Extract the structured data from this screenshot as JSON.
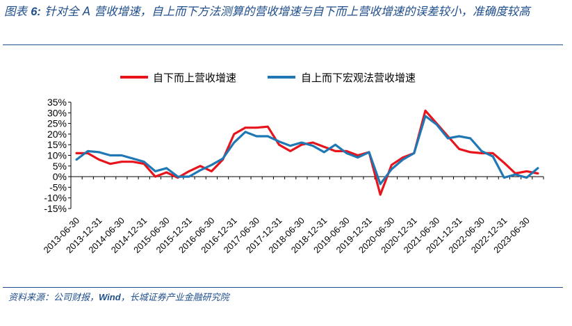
{
  "figure": {
    "title_prefix": "图表",
    "title_number": "6:",
    "title_text": "针对全 A 营收增速，自上而下方法测算的营收增速与自下而上营收增速的误差较小，准确度较高",
    "source_prefix": "资料来源：公司财报，",
    "source_wind": "Wind",
    "source_suffix": "，长城证券产业金融研究院"
  },
  "colors": {
    "series_bottom_up": "#e8141c",
    "series_top_down": "#1f77b4",
    "accent": "#1f4e8c"
  },
  "chart_data": {
    "type": "line",
    "title": "",
    "xlabel": "",
    "ylabel": "",
    "ylim": [
      -15,
      35
    ],
    "y_ticks": [
      "-15%",
      "-10%",
      "-5%",
      "0%",
      "5%",
      "10%",
      "15%",
      "20%",
      "25%",
      "30%",
      "35%"
    ],
    "y_tick_values": [
      -15,
      -10,
      -5,
      0,
      5,
      10,
      15,
      20,
      25,
      30,
      35
    ],
    "grid": false,
    "legend": "top-center",
    "x": [
      "2013-06-30",
      "2013-09-30",
      "2013-12-31",
      "2014-03-31",
      "2014-06-30",
      "2014-09-30",
      "2014-12-31",
      "2015-03-31",
      "2015-06-30",
      "2015-09-30",
      "2015-12-31",
      "2016-03-31",
      "2016-06-30",
      "2016-09-30",
      "2016-12-31",
      "2017-03-31",
      "2017-06-30",
      "2017-09-30",
      "2017-12-31",
      "2018-03-31",
      "2018-06-30",
      "2018-09-30",
      "2018-12-31",
      "2019-03-31",
      "2019-06-30",
      "2019-09-30",
      "2019-12-31",
      "2020-03-31",
      "2020-06-30",
      "2020-09-30",
      "2020-12-31",
      "2021-03-31",
      "2021-06-30",
      "2021-09-30",
      "2021-12-31",
      "2022-03-31",
      "2022-06-30",
      "2022-09-30",
      "2022-12-31",
      "2023-03-31",
      "2023-06-30",
      "2023-09-30"
    ],
    "x_tick_labels": [
      "2013-06-30",
      "2013-12-31",
      "2014-06-30",
      "2014-12-31",
      "2015-06-30",
      "2015-12-31",
      "2016-06-30",
      "2016-12-31",
      "2017-06-30",
      "2017-12-31",
      "2018-06-30",
      "2018-12-31",
      "2019-06-30",
      "2019-12-31",
      "2020-06-30",
      "2020-12-31",
      "2021-06-30",
      "2021-12-31",
      "2022-06-30",
      "2022-12-31",
      "2023-06-30"
    ],
    "series": [
      {
        "name": "自下而上营收增速",
        "color": "#e8141c",
        "values": [
          11,
          11,
          8,
          6,
          7,
          7,
          6,
          0,
          2,
          -0.5,
          2.5,
          5,
          2.5,
          8,
          20,
          23,
          23,
          23.5,
          15,
          12,
          15,
          16,
          14,
          12,
          12,
          10,
          11.5,
          -8.5,
          5.5,
          9,
          11,
          31,
          25,
          19,
          13,
          11.5,
          11,
          11,
          6.5,
          1.5,
          2.5,
          1.5
        ]
      },
      {
        "name": "自上而下宏观法营收增速",
        "color": "#1f77b4",
        "values": [
          8,
          12,
          11.5,
          10,
          10,
          8.5,
          7,
          2.5,
          4,
          0,
          0,
          3,
          5.5,
          8.5,
          16,
          21,
          19,
          19,
          16.5,
          14.5,
          16,
          14.5,
          11.5,
          15,
          11,
          9,
          11.5,
          -3.5,
          3.5,
          8,
          11,
          28.5,
          24.5,
          18,
          19,
          18,
          12,
          9.5,
          -0.5,
          1,
          -0.5,
          4
        ]
      }
    ]
  }
}
